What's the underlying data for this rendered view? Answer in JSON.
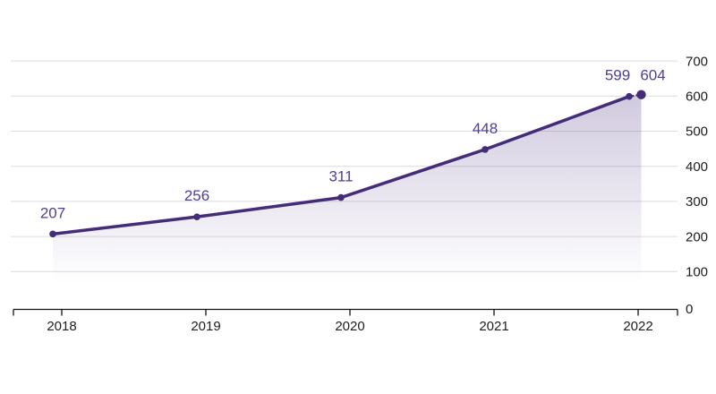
{
  "chart_data": {
    "type": "line",
    "title": "",
    "categories": [
      "2018",
      "2019",
      "2020",
      "2021",
      "2022"
    ],
    "values": [
      207,
      256,
      311,
      448,
      599
    ],
    "end_point": {
      "value": 604,
      "connector": "dotted",
      "position": "just_after_2022"
    },
    "value_labels": [
      "207",
      "256",
      "311",
      "448",
      "599",
      "604"
    ],
    "ylim": [
      0,
      700
    ],
    "yticks": [
      0,
      100,
      200,
      300,
      400,
      500,
      600,
      700
    ],
    "ytick_labels": [
      "0",
      "100",
      "200",
      "300",
      "400",
      "500",
      "600",
      "700"
    ],
    "y_axis_position": "right",
    "grid": "horizontal",
    "legend": "none",
    "area_fill": true
  },
  "colors": {
    "line": "#452c7a",
    "point": "#452c7a",
    "end_point": "#452c7a",
    "value_label": "#4f3e99",
    "axis_text": "#1d1d1d",
    "gridline": "#dcdcdc",
    "axis_line": "#141414",
    "area_top": "rgba(84,58,135,0.28)",
    "area_bottom": "rgba(84,58,135,0)",
    "background": "#ffffff"
  }
}
